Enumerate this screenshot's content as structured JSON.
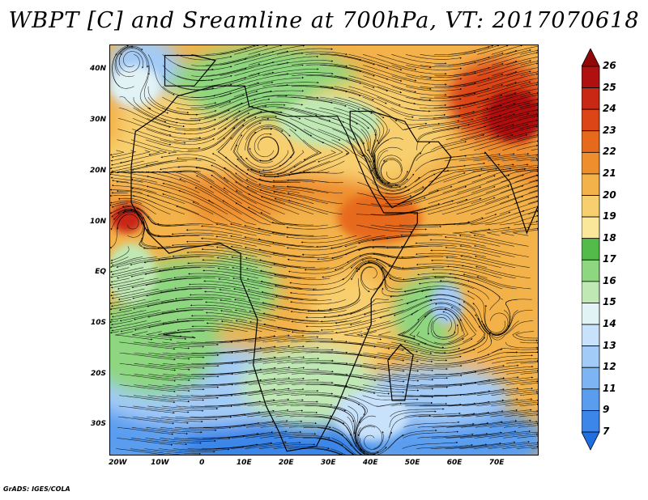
{
  "title": "WBPT [C] and Sreamline at 700hPa, VT: 2017070618",
  "credit": "GrADS: IGES/COLA",
  "map": {
    "lon_range": [
      -22,
      80
    ],
    "lat_range": [
      -36,
      45
    ],
    "lat_ticks": [
      {
        "value": 40,
        "label": "40N"
      },
      {
        "value": 30,
        "label": "30N"
      },
      {
        "value": 20,
        "label": "20N"
      },
      {
        "value": 10,
        "label": "10N"
      },
      {
        "value": 0,
        "label": "EQ"
      },
      {
        "value": -10,
        "label": "10S"
      },
      {
        "value": -20,
        "label": "20S"
      },
      {
        "value": -30,
        "label": "30S"
      }
    ],
    "lon_ticks": [
      {
        "value": -20,
        "label": "20W"
      },
      {
        "value": -10,
        "label": "10W"
      },
      {
        "value": 0,
        "label": "0"
      },
      {
        "value": 10,
        "label": "10E"
      },
      {
        "value": 20,
        "label": "20E"
      },
      {
        "value": 30,
        "label": "30E"
      },
      {
        "value": 40,
        "label": "40E"
      },
      {
        "value": 50,
        "label": "50E"
      },
      {
        "value": 60,
        "label": "60E"
      },
      {
        "value": 70,
        "label": "70E"
      }
    ]
  },
  "colorbar": {
    "levels": [
      "7",
      "9",
      "11",
      "12",
      "13",
      "14",
      "15",
      "16",
      "17",
      "18",
      "19",
      "20",
      "21",
      "22",
      "23",
      "24",
      "25",
      "26"
    ],
    "colors": [
      "#1f6fe0",
      "#3b86e8",
      "#5a9def",
      "#7db4f3",
      "#a3cbf7",
      "#c8e2fb",
      "#e2f3f5",
      "#bfe8b4",
      "#8ed67f",
      "#52bb4a",
      "#fbe79a",
      "#f8cf6e",
      "#f3b24a",
      "#ee8e2d",
      "#e76a1c",
      "#dc4516",
      "#c82814",
      "#b01010",
      "#900808"
    ]
  }
}
